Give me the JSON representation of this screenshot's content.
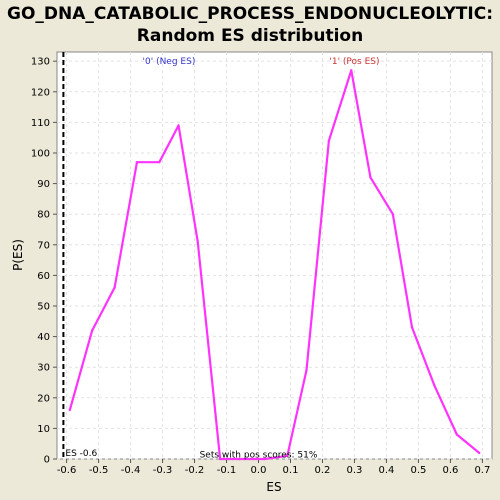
{
  "title_line_1": "GO_DNA_CATABOLIC_PROCESS_ENDONUCLEOLYTIC:",
  "title_line_2": "Random ES distribution",
  "chart_data": {
    "type": "line",
    "xlabel": "ES",
    "ylabel": "P(ES)",
    "xlim": [
      -0.63,
      0.73
    ],
    "ylim": [
      0,
      133
    ],
    "xticks": [
      -0.6,
      -0.5,
      -0.4,
      -0.3,
      -0.2,
      -0.1,
      0.0,
      0.1,
      0.2,
      0.3,
      0.4,
      0.5,
      0.6,
      0.7
    ],
    "xtick_labels": [
      "-0.6",
      "-0.5",
      "-0.4",
      "-0.3",
      "-0.2",
      "-0.1",
      "0.0",
      "0.1",
      "0.2",
      "0.3",
      "0.4",
      "0.5",
      "0.6",
      "0.7"
    ],
    "yticks": [
      0,
      10,
      20,
      30,
      40,
      50,
      60,
      70,
      80,
      90,
      100,
      110,
      120,
      130
    ],
    "grid": true,
    "series": [
      {
        "color": "#ff33ff",
        "x": [
          -0.59,
          -0.52,
          -0.45,
          -0.38,
          -0.31,
          -0.25,
          -0.19,
          -0.12,
          -0.06,
          0.02,
          0.09,
          0.15,
          0.22,
          0.29,
          0.35,
          0.42,
          0.48,
          0.55,
          0.62,
          0.69
        ],
        "y": [
          16,
          42,
          56,
          97,
          97,
          109,
          71,
          0,
          0,
          0,
          1,
          29,
          104,
          127,
          92,
          80,
          43,
          24,
          8,
          2
        ]
      }
    ],
    "annotations": [
      {
        "text": "'0' (Neg ES)",
        "x": -0.28,
        "y": 130,
        "color": "#3333cc"
      },
      {
        "text": "'1' (Pos ES)",
        "x": 0.3,
        "y": 130,
        "color": "#cc3333"
      },
      {
        "text": "Sets with pos scores: 51%",
        "x": 0.0,
        "y": 1.5,
        "color": "#000000"
      },
      {
        "text": "ES -0.6",
        "x": -0.61,
        "y": 1,
        "color": "#000000"
      }
    ],
    "vline": {
      "x": -0.61,
      "style": "dashed",
      "color": "#000000"
    }
  }
}
